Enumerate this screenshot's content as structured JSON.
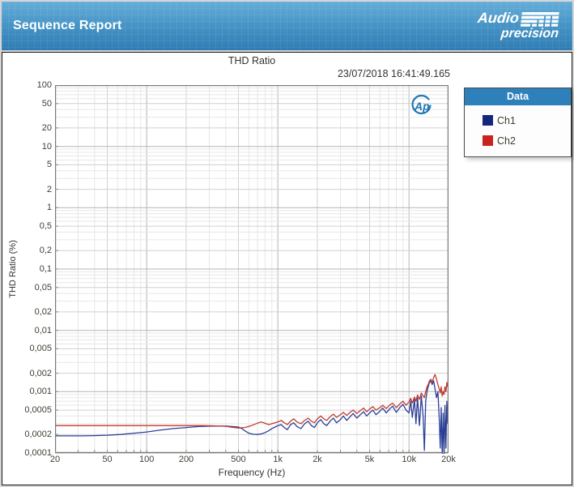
{
  "header": {
    "title": "Sequence Report",
    "brand": {
      "line1": "Audio",
      "line2": "precision"
    }
  },
  "report": {
    "title": "THD Ratio",
    "timestamp": "23/07/2018 16:41:49.165"
  },
  "legend": {
    "title": "Data",
    "items": [
      {
        "label": "Ch1",
        "color": "#16267c"
      },
      {
        "label": "Ch2",
        "color": "#c8231f"
      }
    ]
  },
  "colors": {
    "banner_top": "#66add8",
    "banner_bottom": "#2e7cb3",
    "legend_header": "#2e80ba",
    "grid_minor": "#e7e7e7",
    "grid_medium": "#d0d0d0",
    "grid_decade": "#b5b5b5",
    "plot_border": "#7a7a7a",
    "watermark_blue": "#1f77b4"
  },
  "chart_data": {
    "type": "line",
    "title": "THD Ratio",
    "xlabel": "Frequency (Hz)",
    "ylabel": "THD Ratio (%)",
    "x_scale": "log",
    "y_scale": "log",
    "xlim": [
      20,
      20000
    ],
    "ylim": [
      0.0001,
      100
    ],
    "grid": true,
    "legend_position": "outside-right",
    "watermark": "Ap",
    "x_ticks": [
      20,
      50,
      100,
      200,
      500,
      1000,
      2000,
      5000,
      10000,
      20000
    ],
    "x_tick_labels": [
      "20",
      "50",
      "100",
      "200",
      "500",
      "1k",
      "2k",
      "5k",
      "10k",
      "20k"
    ],
    "y_ticks": [
      100,
      50,
      20,
      10,
      5,
      2,
      1,
      0.5,
      0.2,
      0.1,
      0.05,
      0.02,
      0.01,
      0.005,
      0.002,
      0.001,
      0.0005,
      0.0002,
      0.0001
    ],
    "y_tick_labels": [
      "100",
      "50",
      "20",
      "10",
      "5",
      "2",
      "1",
      "0,5",
      "0,2",
      "0,1",
      "0,05",
      "0,02",
      "0,01",
      "0,005",
      "0,002",
      "0,001",
      "0,0005",
      "0,0002",
      "0,0001"
    ],
    "series": [
      {
        "name": "Ch1",
        "color": "#2b3f97",
        "points": [
          [
            20,
            0.00019
          ],
          [
            25,
            0.00019
          ],
          [
            32,
            0.00019
          ],
          [
            40,
            0.000192
          ],
          [
            50,
            0.000195
          ],
          [
            63,
            0.0002
          ],
          [
            80,
            0.00021
          ],
          [
            100,
            0.00022
          ],
          [
            125,
            0.000235
          ],
          [
            160,
            0.00025
          ],
          [
            200,
            0.00026
          ],
          [
            250,
            0.00027
          ],
          [
            315,
            0.000275
          ],
          [
            400,
            0.000275
          ],
          [
            450,
            0.00027
          ],
          [
            500,
            0.000265
          ],
          [
            530,
            0.00025
          ],
          [
            560,
            0.00023
          ],
          [
            600,
            0.00021
          ],
          [
            650,
            0.000202
          ],
          [
            700,
            0.0002
          ],
          [
            750,
            0.000205
          ],
          [
            800,
            0.000215
          ],
          [
            850,
            0.00023
          ],
          [
            900,
            0.00025
          ],
          [
            950,
            0.000265
          ],
          [
            1000,
            0.00028
          ],
          [
            1060,
            0.00029
          ],
          [
            1120,
            0.00026
          ],
          [
            1180,
            0.00024
          ],
          [
            1250,
            0.00029
          ],
          [
            1320,
            0.00031
          ],
          [
            1400,
            0.00027
          ],
          [
            1500,
            0.00025
          ],
          [
            1600,
            0.0003
          ],
          [
            1700,
            0.00033
          ],
          [
            1800,
            0.00028
          ],
          [
            1900,
            0.00026
          ],
          [
            2000,
            0.00031
          ],
          [
            2120,
            0.00035
          ],
          [
            2240,
            0.0003
          ],
          [
            2360,
            0.00028
          ],
          [
            2500,
            0.00033
          ],
          [
            2650,
            0.00037
          ],
          [
            2800,
            0.00031
          ],
          [
            3000,
            0.00035
          ],
          [
            3150,
            0.0004
          ],
          [
            3350,
            0.00034
          ],
          [
            3550,
            0.00039
          ],
          [
            3750,
            0.00044
          ],
          [
            4000,
            0.00037
          ],
          [
            4250,
            0.00042
          ],
          [
            4500,
            0.00047
          ],
          [
            4750,
            0.0004
          ],
          [
            5000,
            0.00045
          ],
          [
            5300,
            0.0005
          ],
          [
            5600,
            0.00042
          ],
          [
            6000,
            0.00048
          ],
          [
            6300,
            0.00054
          ],
          [
            6700,
            0.00045
          ],
          [
            7100,
            0.00052
          ],
          [
            7500,
            0.00058
          ],
          [
            8000,
            0.00046
          ],
          [
            8500,
            0.00055
          ],
          [
            9000,
            0.00062
          ],
          [
            9500,
            0.0005
          ],
          [
            10000,
            0.00045
          ],
          [
            10300,
            0.0007
          ],
          [
            10600,
            0.00038
          ],
          [
            11000,
            0.00075
          ],
          [
            11300,
            0.0003
          ],
          [
            11600,
            0.0008
          ],
          [
            12000,
            0.00028
          ],
          [
            12400,
            0.00085
          ],
          [
            12800,
            0.0004
          ],
          [
            13100,
            0.00011
          ],
          [
            13400,
            0.0007
          ],
          [
            13700,
            0.001
          ],
          [
            14000,
            0.0012
          ],
          [
            14300,
            0.0014
          ],
          [
            14700,
            0.0015
          ],
          [
            15000,
            0.0013
          ],
          [
            15400,
            0.0015
          ],
          [
            15800,
            0.0011
          ],
          [
            16200,
            0.0008
          ],
          [
            16600,
            0.001
          ],
          [
            17000,
            0.00035
          ],
          [
            17300,
            0.00012
          ],
          [
            17600,
            0.00055
          ],
          [
            17900,
            9e-05
          ],
          [
            18200,
            0.00045
          ],
          [
            18500,
            8e-05
          ],
          [
            18800,
            0.0006
          ],
          [
            19100,
            0.00012
          ],
          [
            19400,
            0.0007
          ],
          [
            19700,
            0.0003
          ],
          [
            20000,
            0.001
          ]
        ]
      },
      {
        "name": "Ch2",
        "color": "#c03a30",
        "points": [
          [
            20,
            0.00028
          ],
          [
            50,
            0.00028
          ],
          [
            100,
            0.00028
          ],
          [
            150,
            0.00028
          ],
          [
            200,
            0.00028
          ],
          [
            250,
            0.00028
          ],
          [
            315,
            0.000278
          ],
          [
            400,
            0.000272
          ],
          [
            450,
            0.000262
          ],
          [
            500,
            0.000255
          ],
          [
            560,
            0.00026
          ],
          [
            630,
            0.00028
          ],
          [
            710,
            0.00031
          ],
          [
            750,
            0.00032
          ],
          [
            800,
            0.000305
          ],
          [
            850,
            0.00029
          ],
          [
            900,
            0.0003
          ],
          [
            950,
            0.00031
          ],
          [
            1000,
            0.00032
          ],
          [
            1060,
            0.00034
          ],
          [
            1120,
            0.00031
          ],
          [
            1180,
            0.00029
          ],
          [
            1250,
            0.00033
          ],
          [
            1320,
            0.00036
          ],
          [
            1400,
            0.00032
          ],
          [
            1500,
            0.0003
          ],
          [
            1600,
            0.00034
          ],
          [
            1700,
            0.00037
          ],
          [
            1800,
            0.00033
          ],
          [
            1900,
            0.00031
          ],
          [
            2000,
            0.00036
          ],
          [
            2120,
            0.0004
          ],
          [
            2240,
            0.00036
          ],
          [
            2360,
            0.00034
          ],
          [
            2500,
            0.00039
          ],
          [
            2650,
            0.00043
          ],
          [
            2800,
            0.00038
          ],
          [
            3000,
            0.00042
          ],
          [
            3150,
            0.00046
          ],
          [
            3350,
            0.00041
          ],
          [
            3550,
            0.00046
          ],
          [
            3750,
            0.0005
          ],
          [
            4000,
            0.00044
          ],
          [
            4250,
            0.00049
          ],
          [
            4500,
            0.00054
          ],
          [
            4750,
            0.00047
          ],
          [
            5000,
            0.00052
          ],
          [
            5300,
            0.00057
          ],
          [
            5600,
            0.0005
          ],
          [
            6000,
            0.00055
          ],
          [
            6300,
            0.0006
          ],
          [
            6700,
            0.00053
          ],
          [
            7100,
            0.0006
          ],
          [
            7500,
            0.00065
          ],
          [
            8000,
            0.00055
          ],
          [
            8500,
            0.00063
          ],
          [
            9000,
            0.0007
          ],
          [
            9500,
            0.0006
          ],
          [
            10000,
            0.00068
          ],
          [
            10300,
            0.00078
          ],
          [
            10600,
            0.00065
          ],
          [
            11000,
            0.00082
          ],
          [
            11300,
            0.0007
          ],
          [
            11600,
            0.00088
          ],
          [
            12000,
            0.00075
          ],
          [
            12400,
            0.00095
          ],
          [
            12800,
            0.00085
          ],
          [
            13100,
            0.0008
          ],
          [
            13400,
            0.001
          ],
          [
            13700,
            0.0012
          ],
          [
            14000,
            0.0013
          ],
          [
            14300,
            0.0015
          ],
          [
            14700,
            0.0016
          ],
          [
            15000,
            0.0014
          ],
          [
            15400,
            0.0017
          ],
          [
            15800,
            0.0019
          ],
          [
            16200,
            0.0016
          ],
          [
            16600,
            0.0013
          ],
          [
            17000,
            0.0011
          ],
          [
            17300,
            0.00095
          ],
          [
            17600,
            0.0012
          ],
          [
            17900,
            0.00085
          ],
          [
            18200,
            0.001
          ],
          [
            18500,
            0.0009
          ],
          [
            18800,
            0.0012
          ],
          [
            19100,
            0.001
          ],
          [
            19400,
            0.0014
          ],
          [
            19700,
            0.0012
          ],
          [
            20000,
            0.0019
          ]
        ]
      }
    ]
  }
}
